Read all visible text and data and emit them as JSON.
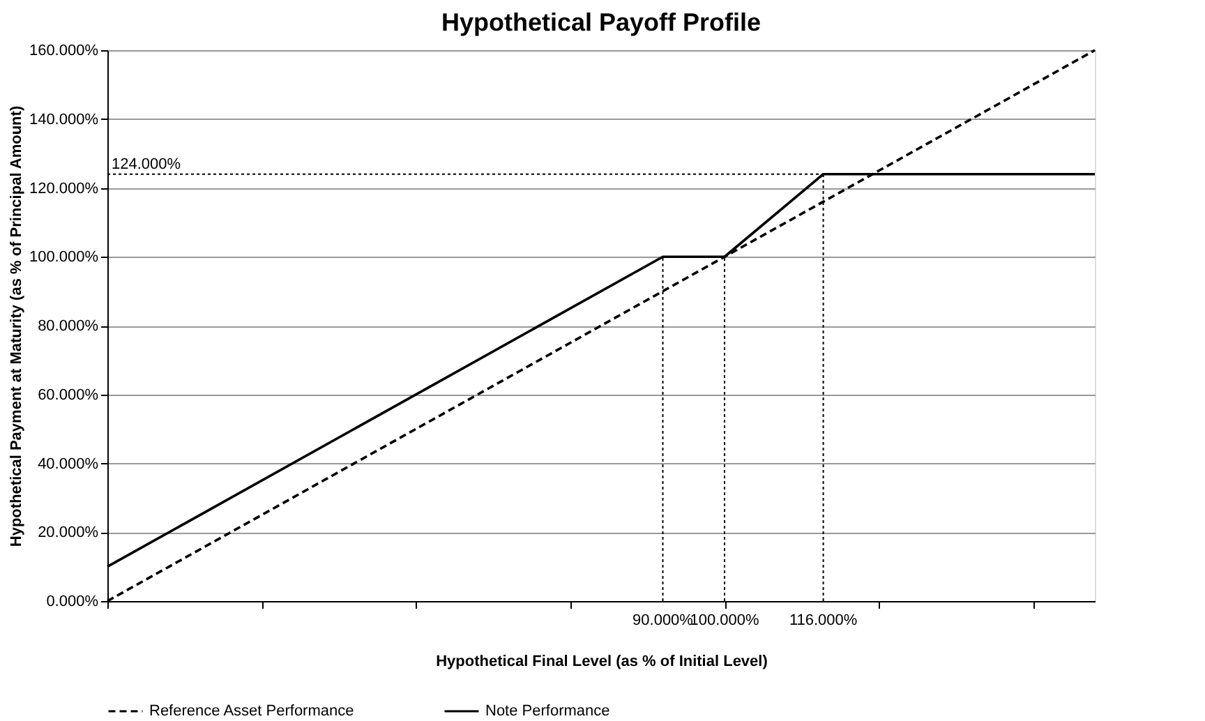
{
  "chart_data": {
    "type": "line",
    "title": "Hypothetical  Payoff Profile",
    "xlabel": "Hypothetical Final  Level (as % of Initial Level)",
    "ylabel": "Hypothetical Payment at Maturity (as % of Principal Amount)",
    "series": [
      {
        "name": "Reference Asset Performance",
        "color": "#000000",
        "line_style": "dashed",
        "x": [
          0,
          160
        ],
        "values": [
          0,
          160
        ]
      },
      {
        "name": "Note Performance",
        "color": "#000000",
        "line_style": "solid",
        "x": [
          0,
          90,
          100,
          116,
          160
        ],
        "values": [
          10,
          100,
          100,
          124,
          124
        ]
      }
    ],
    "xlim": [
      0,
      160
    ],
    "xticks": [
      {
        "value": 0,
        "label": null
      },
      {
        "value": 25,
        "label": null
      },
      {
        "value": 50,
        "label": null
      },
      {
        "value": 75,
        "label": null
      },
      {
        "value": 100,
        "label": null
      },
      {
        "value": 125,
        "label": null
      },
      {
        "value": 150,
        "label": null
      }
    ],
    "ylim": [
      0,
      160
    ],
    "yticks": [
      {
        "value": 0,
        "label": "0.000%"
      },
      {
        "value": 20,
        "label": "20.000%"
      },
      {
        "value": 40,
        "label": "40.000%"
      },
      {
        "value": 60,
        "label": "60.000%"
      },
      {
        "value": 80,
        "label": "80.000%"
      },
      {
        "value": 100,
        "label": "100.000%"
      },
      {
        "value": 120,
        "label": "120.000%"
      },
      {
        "value": 140,
        "label": "140.000%"
      },
      {
        "value": 160,
        "label": "160.000%"
      }
    ],
    "ref_lines": [
      {
        "axis": "x",
        "value": 90,
        "label": "90.000%",
        "line_style": "dotted"
      },
      {
        "axis": "x",
        "value": 100,
        "label": "100.000%",
        "line_style": "dotted"
      },
      {
        "axis": "x",
        "value": 116,
        "label": "116.000%",
        "line_style": "dotted"
      },
      {
        "axis": "y",
        "value": 124,
        "label": "124.000%",
        "line_style": "dotted"
      }
    ],
    "grid": "y",
    "legend": "bottom",
    "marker": "none"
  }
}
